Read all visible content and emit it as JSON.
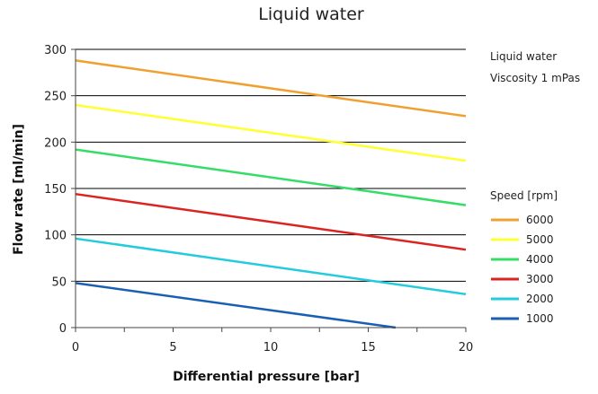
{
  "chart_data": {
    "type": "line",
    "title": "Liquid water",
    "xlabel": "Differential pressure [bar]",
    "ylabel": "Flow rate [ml/min]",
    "xlim": [
      0,
      20
    ],
    "ylim": [
      0,
      300
    ],
    "x_ticks": [
      0,
      5,
      10,
      15,
      20
    ],
    "y_ticks": [
      0,
      50,
      100,
      150,
      200,
      250,
      300
    ],
    "grid": "horizontal",
    "annotations": [
      "Liquid water",
      "Viscosity 1 mPas"
    ],
    "legend_title": "Speed [rpm]",
    "legend_position": "right",
    "series": [
      {
        "name": "6000",
        "color": "#F0A030",
        "x": [
          0,
          20
        ],
        "y": [
          288,
          228
        ]
      },
      {
        "name": "5000",
        "color": "#FFFF33",
        "x": [
          0,
          20
        ],
        "y": [
          240,
          180
        ]
      },
      {
        "name": "4000",
        "color": "#33DD66",
        "x": [
          0,
          20
        ],
        "y": [
          192,
          132
        ]
      },
      {
        "name": "3000",
        "color": "#DD2222",
        "x": [
          0,
          20
        ],
        "y": [
          144,
          84
        ]
      },
      {
        "name": "2000",
        "color": "#22CCDD",
        "x": [
          0,
          20
        ],
        "y": [
          96,
          36
        ]
      },
      {
        "name": "1000",
        "color": "#1A5FB4",
        "x": [
          0,
          16.4
        ],
        "y": [
          48,
          0
        ]
      }
    ]
  }
}
